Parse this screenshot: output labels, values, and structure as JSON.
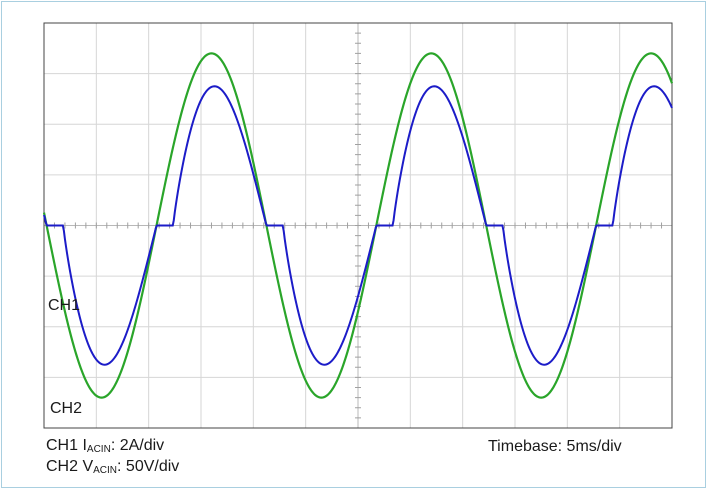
{
  "chart_data": {
    "type": "line",
    "title": "",
    "xlabel": "",
    "ylabel": "",
    "grid": true,
    "x_divisions": 12,
    "y_divisions": 8,
    "x_units": "div",
    "y_units": "div",
    "xlim": [
      0,
      12
    ],
    "ylim": [
      -4,
      4
    ],
    "series": [
      {
        "name": "CH1",
        "color": "#1c1cc8",
        "waveform": "sinusoidal with flat zero-crossing dead zones",
        "period_div": 4.2,
        "amplitude_div": 2.75,
        "dead_zone_div": 0.32
      },
      {
        "name": "CH2",
        "color": "#2aa52a",
        "waveform": "sinusoidal",
        "period_div": 4.2,
        "amplitude_div": 3.4
      }
    ]
  },
  "labels": {
    "ch1_trace": "CH1",
    "ch2_trace": "CH2"
  },
  "captions": {
    "ch1_prefix": "CH1 I",
    "ch1_sub": "ACIN",
    "ch1_scale": ": 2A/div",
    "ch2_prefix": "CH2 V",
    "ch2_sub": "ACIN",
    "ch2_scale": ": 50V/div",
    "timebase": "Timebase: 5ms/div"
  }
}
